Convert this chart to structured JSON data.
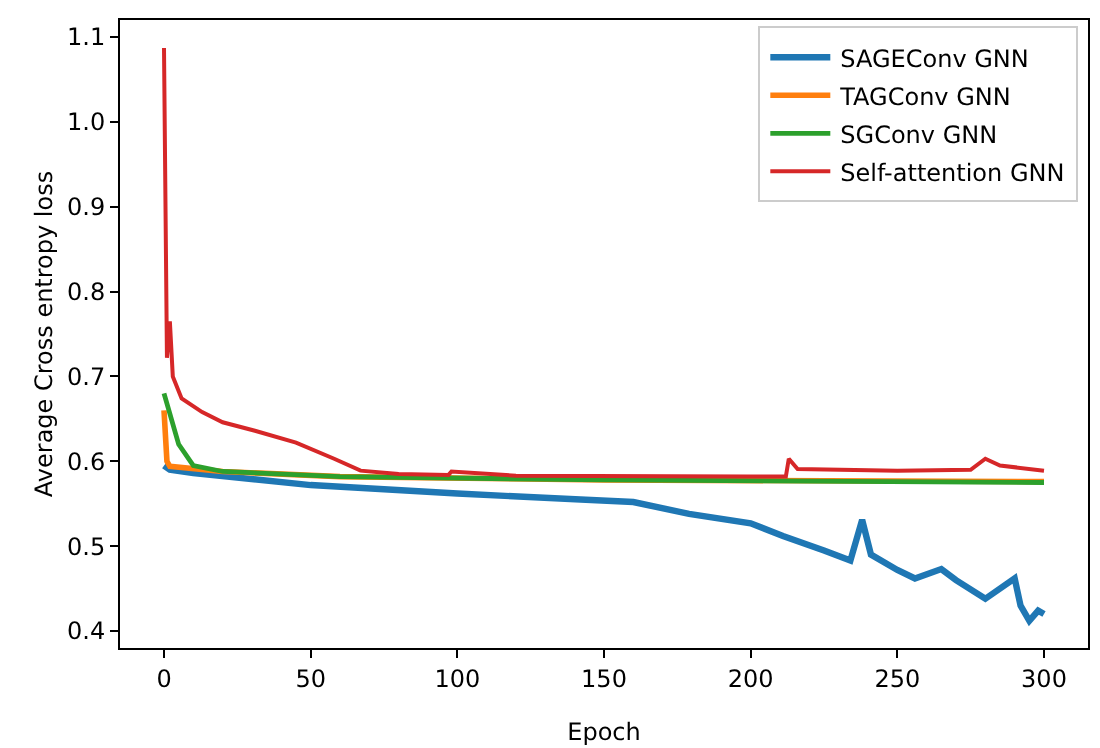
{
  "chart_data": {
    "type": "line",
    "xlabel": "Epoch",
    "ylabel": "Average Cross entropy loss",
    "xlim": [
      -15,
      315
    ],
    "ylim": [
      0.38,
      1.12
    ],
    "xticks": [
      0,
      50,
      100,
      150,
      200,
      250,
      300
    ],
    "yticks": [
      {
        "value": 0.4,
        "label": "0.4"
      },
      {
        "value": 0.5,
        "label": "0.5"
      },
      {
        "value": 0.6,
        "label": "0.6"
      },
      {
        "value": 0.7,
        "label": "0.7"
      },
      {
        "value": 0.8,
        "label": "0.8"
      },
      {
        "value": 0.9,
        "label": "0.9"
      },
      {
        "value": 1.0,
        "label": "1.0"
      },
      {
        "value": 1.1,
        "label": "1.1"
      }
    ],
    "grid": false,
    "legend": "top right",
    "marker": "none",
    "line_style": "solid",
    "series": [
      {
        "name": "SAGEConv GNN",
        "color": "#1f77b4",
        "x": [
          0,
          2,
          10,
          50,
          100,
          142,
          160,
          179,
          200,
          211,
          225,
          234,
          238,
          241,
          250,
          256,
          265,
          270,
          280,
          290,
          292,
          295,
          298,
          300
        ],
        "values": [
          0.595,
          0.59,
          0.586,
          0.572,
          0.562,
          0.555,
          0.552,
          0.538,
          0.527,
          0.512,
          0.495,
          0.483,
          0.531,
          0.49,
          0.472,
          0.462,
          0.473,
          0.46,
          0.438,
          0.462,
          0.43,
          0.412,
          0.424,
          0.42
        ]
      },
      {
        "name": "TAGConv GNN",
        "color": "#ff7f0e",
        "x": [
          0,
          1,
          2,
          20,
          60,
          150,
          300
        ],
        "values": [
          0.66,
          0.6,
          0.594,
          0.588,
          0.582,
          0.578,
          0.576
        ]
      },
      {
        "name": "SGConv GNN",
        "color": "#2ca02c",
        "x": [
          0,
          5,
          10,
          20,
          60,
          150,
          300
        ],
        "values": [
          0.68,
          0.62,
          0.595,
          0.588,
          0.582,
          0.578,
          0.575
        ]
      },
      {
        "name": "Self-attention GNN",
        "color": "#d62728",
        "x": [
          0,
          1,
          2,
          3,
          6,
          13,
          20,
          31,
          45,
          58,
          67,
          80,
          97,
          98,
          120,
          200,
          212,
          213,
          216,
          250,
          275,
          280,
          285,
          300
        ],
        "values": [
          1.087,
          0.722,
          0.765,
          0.7,
          0.674,
          0.658,
          0.646,
          0.636,
          0.622,
          0.603,
          0.589,
          0.585,
          0.584,
          0.588,
          0.583,
          0.582,
          0.582,
          0.603,
          0.591,
          0.589,
          0.59,
          0.603,
          0.595,
          0.589
        ]
      }
    ]
  }
}
